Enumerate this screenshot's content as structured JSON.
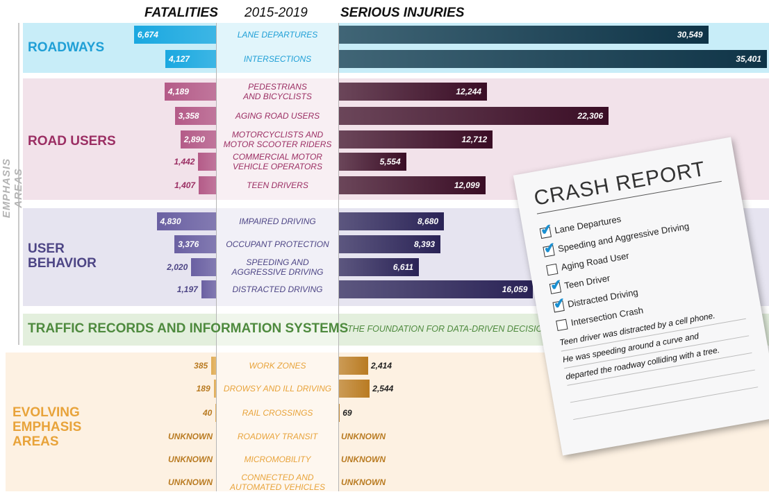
{
  "chart_data": {
    "type": "diverging-bar",
    "headers": {
      "left": "FATALITIES",
      "center": "2015-2019",
      "right": "SERIOUS INJURIES"
    },
    "side_label": "EMPHASIS AREAS",
    "groups": [
      {
        "name": "ROADWAYS",
        "color": "#1f9fd6",
        "panel": "#c8edf8",
        "colors": {
          "fatalities": "#1aa8e0",
          "injuries": "#0f3447"
        },
        "categories": [
          "LANE DEPARTURES",
          "INTERSECTIONS"
        ],
        "fatalities": {
          "values": [
            6674,
            4127
          ],
          "value_labels": [
            "6,674",
            "4,127"
          ]
        },
        "injuries": {
          "values": [
            30549,
            35401
          ],
          "value_labels": [
            "30,549",
            "35,401"
          ]
        }
      },
      {
        "name": "ROAD USERS",
        "color": "#9b2e63",
        "panel": "#f2e2ea",
        "colors": {
          "fatalities": "#b45b88",
          "injuries": "#3a0d25"
        },
        "categories": [
          "PEDESTRIANS\nAND BICYCLISTS",
          "AGING ROAD USERS",
          "MOTORCYCLISTS AND\nMOTOR SCOOTER RIDERS",
          "COMMERCIAL MOTOR\nVEHICLE OPERATORS",
          "TEEN DRIVERS"
        ],
        "fatalities": {
          "values": [
            4189,
            3358,
            2890,
            1442,
            1407
          ],
          "value_labels": [
            "4,189",
            "3,358",
            "2,890",
            "1,442",
            "1,407"
          ]
        },
        "injuries": {
          "values": [
            12244,
            22306,
            12712,
            5554,
            12099
          ],
          "value_labels": [
            "12,244",
            "22,306",
            "12,712",
            "5,554",
            "12,099"
          ]
        }
      },
      {
        "name": "USER\nBEHAVIOR",
        "color": "#4d4585",
        "panel": "#e6e4f0",
        "colors": {
          "fatalities": "#6a60a2",
          "injuries": "#2a2356"
        },
        "categories": [
          "IMPAIRED DRIVING",
          "OCCUPANT PROTECTION",
          "SPEEDING AND\nAGGRESSIVE DRIVING",
          "DISTRACTED DRIVING"
        ],
        "fatalities": {
          "values": [
            4830,
            3376,
            2020,
            1197
          ],
          "value_labels": [
            "4,830",
            "3,376",
            "2,020",
            "1,197"
          ]
        },
        "injuries": {
          "values": [
            8680,
            8393,
            6611,
            16059
          ],
          "value_labels": [
            "8,680",
            "8,393",
            "6,611",
            "16,059"
          ]
        }
      },
      {
        "name": "TRAFFIC RECORDS AND INFORMATION SYSTEMS",
        "subtitle": "THE FOUNDATION FOR DATA-DRIVEN DECISIONS",
        "color": "#4e8a3e",
        "panel": "#e3efdd"
      },
      {
        "name": "EVOLVING\nEMPHASIS\nAREAS",
        "color": "#e8a33a",
        "panel": "#fdf1e2",
        "colors": {
          "fatalities": "#e0ac55",
          "injuries": "#b97b22"
        },
        "categories": [
          "WORK ZONES",
          "DROWSY AND ILL DRIVING",
          "RAIL CROSSINGS",
          "ROADWAY TRANSIT",
          "MICROMOBILITY",
          "CONNECTED AND\nAUTOMATED VEHICLES"
        ],
        "fatalities": {
          "values": [
            385,
            189,
            40,
            null,
            null,
            null
          ],
          "value_labels": [
            "385",
            "189",
            "40",
            "UNKNOWN",
            "UNKNOWN",
            "UNKNOWN"
          ]
        },
        "injuries": {
          "values": [
            2414,
            2544,
            69,
            null,
            null,
            null
          ],
          "value_labels": [
            "2,414",
            "2,544",
            "69",
            "UNKNOWN",
            "UNKNOWN",
            "UNKNOWN"
          ]
        }
      }
    ]
  },
  "crash_report": {
    "title": "CRASH REPORT",
    "items": [
      {
        "text": "Lane Departures",
        "checked": true
      },
      {
        "text": "Speeding and Aggressive Driving",
        "checked": true
      },
      {
        "text": "Aging Road User",
        "checked": false
      },
      {
        "text": "Teen Driver",
        "checked": true
      },
      {
        "text": "Distracted Driving",
        "checked": true
      },
      {
        "text": "Intersection Crash",
        "checked": false
      }
    ],
    "note": [
      "Teen driver was distracted by a cell phone.",
      "He was speeding around a curve and",
      "departed the roadway colliding with a tree."
    ]
  }
}
